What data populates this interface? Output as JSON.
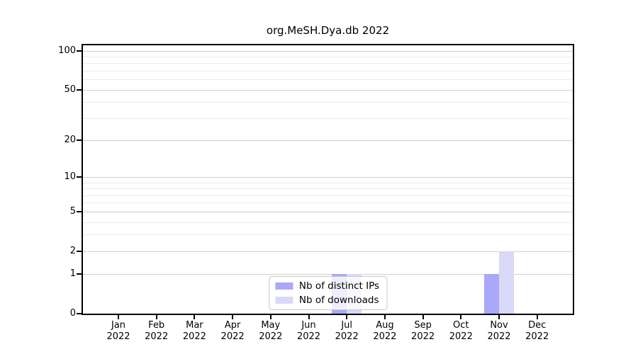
{
  "title": "org.MeSH.Dya.db 2022",
  "chart_data": {
    "type": "bar",
    "title": "org.MeSH.Dya.db 2022",
    "categories": [
      "Jan",
      "Feb",
      "Mar",
      "Apr",
      "May",
      "Jun",
      "Jul",
      "Aug",
      "Sep",
      "Oct",
      "Nov",
      "Dec"
    ],
    "category_year": "2022",
    "series": [
      {
        "name": "Nb of distinct IPs",
        "color": "#a9a9f8",
        "values": [
          0,
          0,
          0,
          0,
          0,
          0,
          1,
          0,
          0,
          0,
          1,
          0
        ]
      },
      {
        "name": "Nb of downloads",
        "color": "#d8d8f8",
        "values": [
          0,
          0,
          0,
          0,
          0,
          0,
          1,
          0,
          0,
          0,
          2,
          0
        ]
      }
    ],
    "y_axis": {
      "scale": "log1p",
      "ticks": [
        0,
        1,
        2,
        5,
        10,
        20,
        50,
        100
      ],
      "minor_ticks": [
        3,
        4,
        6,
        7,
        8,
        9,
        30,
        40,
        60,
        70,
        80,
        90
      ],
      "max": 110
    },
    "x_axis": {
      "label_year": "2022"
    },
    "grid": true,
    "legend_position": "lower center",
    "frame_color": "#000000",
    "major_grid_color": "#cfcfcf",
    "minor_grid_color": "#ececec"
  }
}
